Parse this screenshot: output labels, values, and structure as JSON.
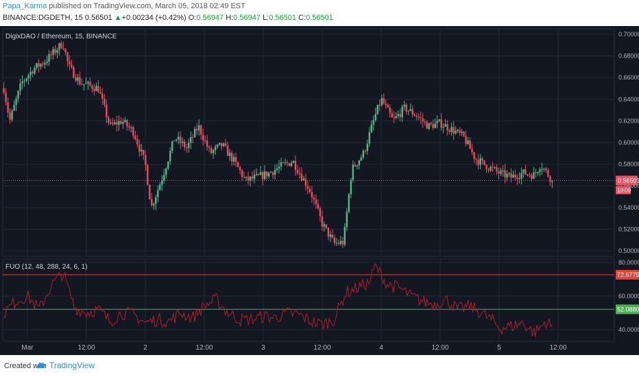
{
  "header": {
    "author": "Papa_Karma",
    "published": " published on TradingView.com, March 05, 2018 02:49 EST",
    "symbol": "BINANCE:DGDETH, 15",
    "price": "0.56501",
    "arrow": "▲",
    "change": "+0.00234 (+0.42%)",
    "o_label": "O:",
    "o_val": "0.56947",
    "h_label": "H:",
    "h_val": "0.56947",
    "l_label": "L:",
    "l_val": "0.56501",
    "c_label": "C:",
    "c_val": "0.56501"
  },
  "footer": {
    "created_with": "Created with",
    "brand": "TradingView"
  },
  "colors": {
    "background": "#131722",
    "up": "#53b987",
    "down": "#eb4d5c",
    "oscillator": "#b21e2a",
    "upper_band": "#e0463c",
    "lower_band": "#4caf50",
    "last_price_label": "#e8535f"
  },
  "chart_data": [
    {
      "type": "candlestick",
      "title": "DigixDAO / Ethereum, 15, BINANCE",
      "y_ticks": [
        "0.70000",
        "0.68000",
        "0.66000",
        "0.64000",
        "0.62000",
        "0.60000",
        "0.58000",
        "0.56000",
        "0.54000",
        "0.52000",
        "0.50000"
      ],
      "ylim": [
        0.495,
        0.705
      ],
      "last_price": "0.56501",
      "countdown": "10:09",
      "x_ticks": [
        "Mar",
        "12:00",
        "2",
        "12:00",
        "3",
        "12:00",
        "4",
        "12:00",
        "5",
        "12:00"
      ],
      "x_tick_positions": [
        0,
        0.5,
        1,
        1.5,
        2,
        2.5,
        3,
        3.5,
        4,
        4.5
      ],
      "price_path": [
        [
          -0.2,
          0.65
        ],
        [
          -0.15,
          0.62
        ],
        [
          -0.05,
          0.655
        ],
        [
          0.05,
          0.668
        ],
        [
          0.15,
          0.675
        ],
        [
          0.3,
          0.692
        ],
        [
          0.35,
          0.67
        ],
        [
          0.45,
          0.655
        ],
        [
          0.6,
          0.65
        ],
        [
          0.7,
          0.615
        ],
        [
          0.8,
          0.62
        ],
        [
          0.9,
          0.61
        ],
        [
          1.0,
          0.58
        ],
        [
          1.05,
          0.54
        ],
        [
          1.15,
          0.57
        ],
        [
          1.25,
          0.605
        ],
        [
          1.35,
          0.595
        ],
        [
          1.45,
          0.615
        ],
        [
          1.55,
          0.59
        ],
        [
          1.65,
          0.598
        ],
        [
          1.75,
          0.583
        ],
        [
          1.85,
          0.565
        ],
        [
          1.95,
          0.568
        ],
        [
          2.05,
          0.572
        ],
        [
          2.15,
          0.578
        ],
        [
          2.25,
          0.583
        ],
        [
          2.4,
          0.555
        ],
        [
          2.5,
          0.525
        ],
        [
          2.6,
          0.507
        ],
        [
          2.68,
          0.508
        ],
        [
          2.75,
          0.575
        ],
        [
          2.85,
          0.59
        ],
        [
          2.95,
          0.625
        ],
        [
          3.0,
          0.64
        ],
        [
          3.1,
          0.62
        ],
        [
          3.2,
          0.632
        ],
        [
          3.3,
          0.625
        ],
        [
          3.4,
          0.615
        ],
        [
          3.5,
          0.618
        ],
        [
          3.6,
          0.612
        ],
        [
          3.7,
          0.605
        ],
        [
          3.8,
          0.585
        ],
        [
          3.9,
          0.578
        ],
        [
          4.0,
          0.572
        ],
        [
          4.1,
          0.568
        ],
        [
          4.2,
          0.572
        ],
        [
          4.3,
          0.57
        ],
        [
          4.35,
          0.58
        ],
        [
          4.45,
          0.565
        ]
      ]
    },
    {
      "type": "line",
      "title": "FUO (12, 48, 288, 24, 6, 1)",
      "y_ticks": [
        "80.0000",
        "60.0000",
        "40.0000"
      ],
      "ylim": [
        33,
        82
      ],
      "upper_band": 72.6775,
      "lower_band": 52.088,
      "upper_label": "72.6775",
      "lower_label": "52.0880",
      "osc_path": [
        [
          -0.2,
          50
        ],
        [
          -0.1,
          57
        ],
        [
          0.0,
          60
        ],
        [
          0.1,
          52
        ],
        [
          0.2,
          66
        ],
        [
          0.3,
          74
        ],
        [
          0.4,
          53
        ],
        [
          0.5,
          50
        ],
        [
          0.6,
          52
        ],
        [
          0.7,
          45
        ],
        [
          0.8,
          50
        ],
        [
          0.9,
          49
        ],
        [
          1.0,
          44
        ],
        [
          1.1,
          46
        ],
        [
          1.2,
          45
        ],
        [
          1.3,
          50
        ],
        [
          1.4,
          47
        ],
        [
          1.5,
          54
        ],
        [
          1.6,
          58
        ],
        [
          1.7,
          50
        ],
        [
          1.8,
          46
        ],
        [
          1.9,
          46
        ],
        [
          2.0,
          48
        ],
        [
          2.1,
          47
        ],
        [
          2.2,
          50
        ],
        [
          2.3,
          49
        ],
        [
          2.4,
          45
        ],
        [
          2.5,
          43
        ],
        [
          2.6,
          46
        ],
        [
          2.7,
          62
        ],
        [
          2.8,
          65
        ],
        [
          2.9,
          68
        ],
        [
          2.95,
          78
        ],
        [
          3.05,
          67
        ],
        [
          3.15,
          65
        ],
        [
          3.25,
          60
        ],
        [
          3.35,
          57
        ],
        [
          3.45,
          55
        ],
        [
          3.55,
          58
        ],
        [
          3.65,
          52
        ],
        [
          3.75,
          54
        ],
        [
          3.85,
          50
        ],
        [
          3.95,
          45
        ],
        [
          4.0,
          41
        ],
        [
          4.1,
          42
        ],
        [
          4.2,
          44
        ],
        [
          4.3,
          38
        ],
        [
          4.4,
          45
        ],
        [
          4.45,
          41
        ]
      ]
    }
  ]
}
